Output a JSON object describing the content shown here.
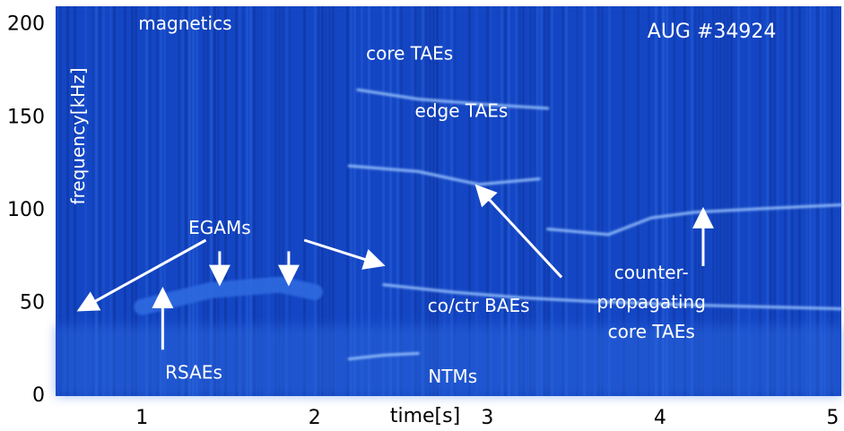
{
  "chart_data": {
    "type": "heatmap",
    "title": "",
    "shot_label": "AUG #34924",
    "xlabel": "time[s]",
    "ylabel": "frequency[kHz]",
    "xlim": [
      0.5,
      5.05
    ],
    "ylim": [
      0,
      210
    ],
    "x_ticks": [
      1,
      2,
      3,
      4,
      5
    ],
    "y_ticks": [
      0,
      50,
      100,
      150,
      200
    ],
    "colormap": [
      "#0a2a8a",
      "#1446c4",
      "#2f6ae0",
      "#9cc6ff",
      "#ffffff"
    ],
    "annotations": [
      {
        "text": "magnetics",
        "x": 1.25,
        "y": 200
      },
      {
        "text": "core TAEs",
        "x": 2.55,
        "y": 184
      },
      {
        "text": "edge TAEs",
        "x": 2.85,
        "y": 153
      },
      {
        "text": "EGAMs",
        "x": 1.45,
        "y": 90
      },
      {
        "text": "co/ctr BAEs",
        "x": 2.95,
        "y": 48
      },
      {
        "text": "RSAEs",
        "x": 1.3,
        "y": 12
      },
      {
        "text": "NTMs",
        "x": 2.8,
        "y": 10
      },
      {
        "text": "counter-",
        "x": 3.95,
        "y": 66
      },
      {
        "text": "propagating",
        "x": 3.95,
        "y": 50
      },
      {
        "text": "core TAEs",
        "x": 3.95,
        "y": 34
      }
    ],
    "arrows": [
      {
        "from": [
          1.37,
          84
        ],
        "to": [
          0.65,
          47
        ]
      },
      {
        "from": [
          1.45,
          78
        ],
        "to": [
          1.45,
          62
        ]
      },
      {
        "from": [
          1.85,
          78
        ],
        "to": [
          1.85,
          62
        ]
      },
      {
        "from": [
          1.94,
          84
        ],
        "to": [
          2.38,
          71
        ]
      },
      {
        "from": [
          1.12,
          25
        ],
        "to": [
          1.12,
          56
        ]
      },
      {
        "from": [
          3.43,
          64
        ],
        "to": [
          2.95,
          112
        ]
      },
      {
        "from": [
          4.25,
          70
        ],
        "to": [
          4.25,
          99
        ]
      }
    ],
    "series": [
      {
        "name": "core TAEs",
        "x": [
          2.25,
          2.6,
          3.0,
          3.35
        ],
        "y": [
          165,
          160,
          157,
          155
        ]
      },
      {
        "name": "edge TAEs",
        "x": [
          2.2,
          2.6,
          2.95,
          3.3
        ],
        "y": [
          124,
          121,
          114,
          117
        ]
      },
      {
        "name": "counter-propagating core TAEs",
        "x": [
          3.35,
          3.7,
          3.95,
          4.2,
          4.6,
          5.05
        ],
        "y": [
          90,
          87,
          96,
          99,
          101,
          103
        ]
      },
      {
        "name": "co/ctr BAEs",
        "x": [
          2.4,
          2.8,
          3.2,
          3.6,
          4.2,
          5.05
        ],
        "y": [
          60,
          56,
          53,
          51,
          49,
          47
        ]
      },
      {
        "name": "NTMs",
        "x": [
          2.2,
          2.4,
          2.6
        ],
        "y": [
          20,
          22,
          23
        ]
      },
      {
        "name": "EGAMs",
        "x": [
          1.0,
          1.4,
          1.8,
          2.0
        ],
        "y": [
          48,
          57,
          60,
          56
        ]
      }
    ]
  }
}
